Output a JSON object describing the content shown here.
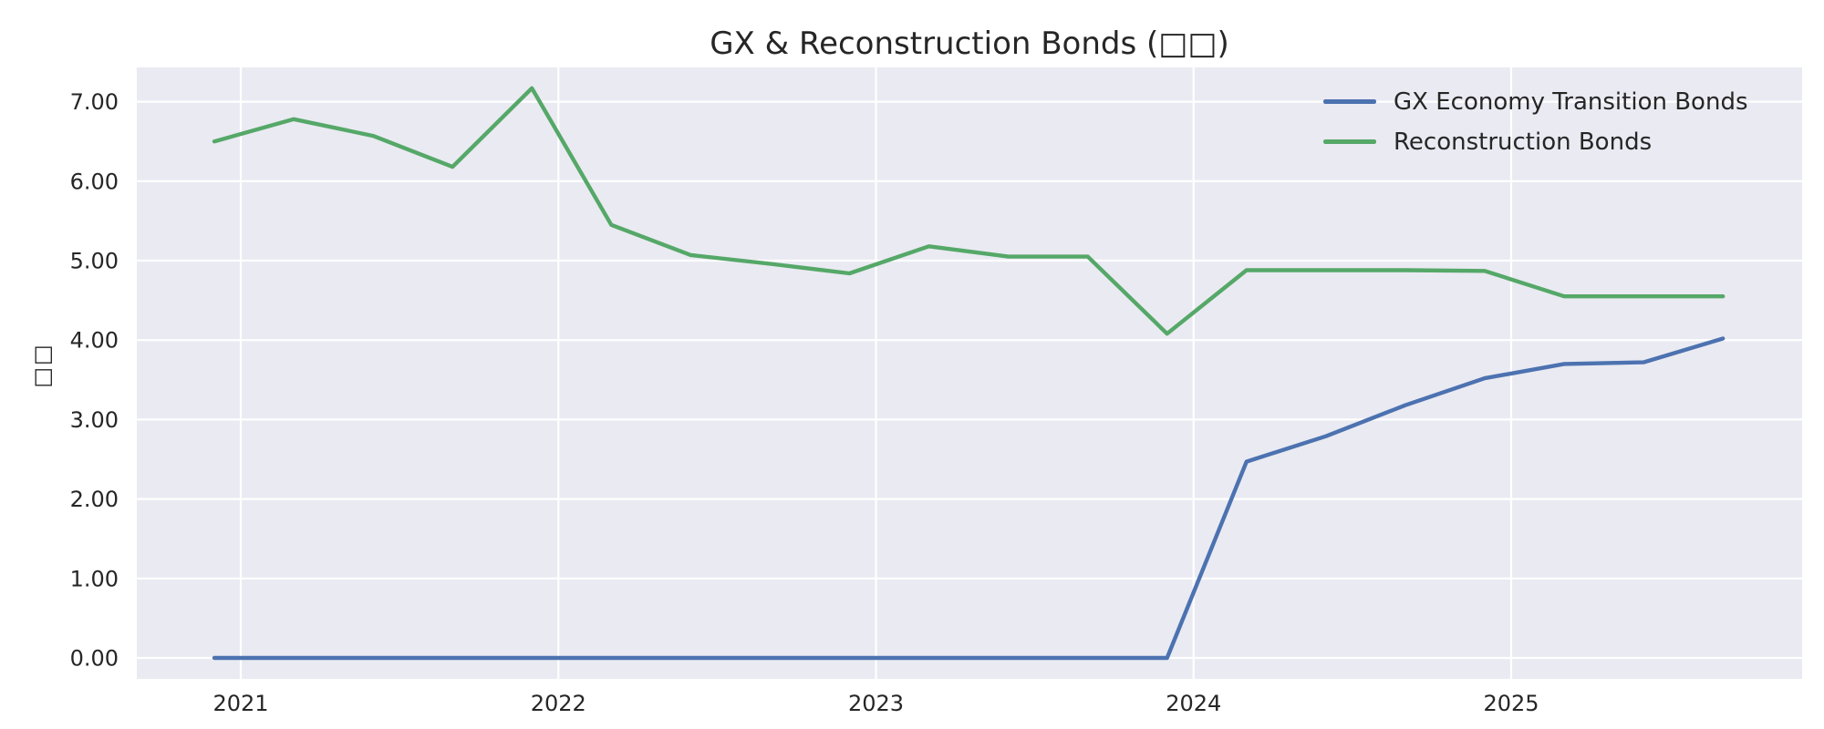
{
  "figure": {
    "background": "#FFFFFF",
    "plot_background": "#EAEAF2",
    "gridline_color": "#FFFFFF",
    "text_color": "#262626"
  },
  "chart_data": {
    "type": "line",
    "title": "GX & Reconstruction Bonds (□□)",
    "xlabel": "",
    "ylabel": "□□",
    "grid": true,
    "legend_position": "upper right",
    "x_unit": "fiscal quarter end (Dec/Mar/Jun/Sep)",
    "x": [
      2020.9167,
      2021.1667,
      2021.4167,
      2021.6667,
      2021.9167,
      2022.1667,
      2022.4167,
      2022.6667,
      2022.9167,
      2023.1667,
      2023.4167,
      2023.6667,
      2023.9167,
      2024.1667,
      2024.4167,
      2024.6667,
      2024.9167,
      2025.1667,
      2025.4167,
      2025.6667
    ],
    "series": [
      {
        "name": "GX Economy Transition Bonds",
        "color": "#4C72B0",
        "values": [
          0.0,
          0.0,
          0.0,
          0.0,
          0.0,
          0.0,
          0.0,
          0.0,
          0.0,
          0.0,
          0.0,
          0.0,
          0.0,
          2.47,
          2.79,
          3.18,
          3.52,
          3.7,
          3.72,
          4.02
        ]
      },
      {
        "name": "Reconstruction Bonds",
        "color": "#55A868",
        "values": [
          6.5,
          6.78,
          6.57,
          6.18,
          7.17,
          5.45,
          5.07,
          4.96,
          4.84,
          5.18,
          5.05,
          5.05,
          4.08,
          4.88,
          4.88,
          4.88,
          4.87,
          4.55,
          4.55,
          4.55
        ]
      }
    ],
    "xticks": {
      "labels": [
        "2021",
        "2022",
        "2023",
        "2024",
        "2025"
      ],
      "values": [
        2021,
        2022,
        2023,
        2024,
        2025
      ]
    },
    "yticks": {
      "labels": [
        "0.00",
        "1.00",
        "2.00",
        "3.00",
        "4.00",
        "5.00",
        "6.00",
        "7.00"
      ],
      "values": [
        0,
        1,
        2,
        3,
        4,
        5,
        6,
        7
      ]
    },
    "xlim": [
      2020.67,
      2025.93
    ],
    "ylim": [
      -0.26,
      7.43
    ]
  }
}
